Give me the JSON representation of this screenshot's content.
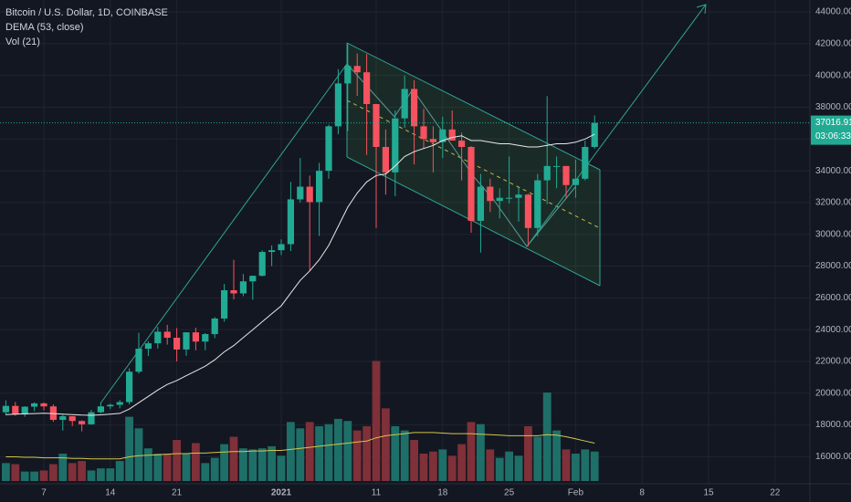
{
  "chart_data": {
    "type": "candlestick",
    "title": "Bitcoin / U.S. Dollar, 1D, COINBASE",
    "indicators": [
      "DEMA (53, close)",
      "Vol (21)"
    ],
    "categories": [
      null,
      null,
      null,
      null,
      "7",
      null,
      null,
      null,
      null,
      null,
      null,
      "14",
      null,
      null,
      null,
      null,
      null,
      null,
      "21",
      null,
      null,
      null,
      null,
      null,
      null,
      null,
      null,
      null,
      null,
      "2021",
      null,
      null,
      null,
      null,
      null,
      null,
      null,
      null,
      null,
      "11",
      null,
      null,
      null,
      null,
      null,
      null,
      "18",
      null,
      null,
      null,
      null,
      null,
      null,
      "25",
      null,
      null,
      null,
      null,
      null,
      null,
      "Feb",
      null,
      null,
      null,
      null,
      null,
      null,
      "8",
      null,
      null,
      null,
      null,
      null,
      null,
      "15",
      null,
      null,
      null,
      null,
      null,
      null,
      "22",
      null,
      null,
      null
    ],
    "open": [
      18800,
      19200,
      18660,
      19150,
      19360,
      19170,
      18320,
      18550,
      18250,
      18040,
      18800,
      19170,
      19270,
      19440,
      21350,
      22800,
      23140,
      23870,
      23490,
      22750,
      23830,
      23250,
      23720,
      24700,
      26480,
      26280,
      27040,
      27390,
      28890,
      29000,
      29380,
      32200,
      33000,
      32030,
      34000,
      36800,
      39500,
      40600,
      40200,
      38200,
      35500,
      33900,
      37300,
      39150,
      36800,
      36000,
      35800,
      36600,
      35900,
      35500,
      30850,
      33000,
      32100,
      32300,
      32300,
      32500,
      30400,
      33400,
      34300,
      34300,
      33100,
      33500,
      35500,
      null,
      null,
      null,
      null,
      null,
      null,
      null,
      null,
      null,
      null,
      null,
      null,
      null,
      null,
      null,
      null,
      null,
      null,
      null,
      null,
      null,
      null
    ],
    "high": [
      19550,
      19450,
      19180,
      19420,
      19420,
      19300,
      18640,
      18560,
      18290,
      18950,
      19400,
      19340,
      19570,
      21560,
      23800,
      23280,
      24170,
      24300,
      24100,
      23840,
      24120,
      23780,
      24790,
      26870,
      28400,
      27500,
      27400,
      28990,
      29300,
      29680,
      33300,
      34800,
      33700,
      34500,
      36900,
      40400,
      41950,
      41380,
      41350,
      38200,
      36600,
      37800,
      40000,
      39700,
      37900,
      36800,
      37400,
      37800,
      36400,
      35550,
      33800,
      33500,
      32900,
      34900,
      32950,
      32550,
      33800,
      38700,
      34900,
      34300,
      34700,
      35900,
      37480,
      null,
      null,
      null,
      null,
      null,
      null,
      null,
      null,
      null,
      null,
      null,
      null,
      null,
      null,
      null,
      null,
      null,
      null,
      null,
      null,
      null,
      null
    ],
    "low": [
      18600,
      18580,
      18520,
      18870,
      18920,
      18200,
      17650,
      17930,
      17600,
      18020,
      18730,
      19000,
      19050,
      19300,
      21230,
      22350,
      22800,
      23060,
      22000,
      22360,
      22700,
      22700,
      23470,
      24500,
      25900,
      26100,
      25880,
      27350,
      28000,
      28700,
      28950,
      32000,
      27700,
      29900,
      33500,
      36300,
      36500,
      38720,
      35000,
      30400,
      32500,
      32400,
      36700,
      34400,
      35400,
      33900,
      34800,
      35900,
      33400,
      30100,
      28850,
      31400,
      31000,
      31950,
      30800,
      29250,
      29880,
      31900,
      32900,
      32300,
      32300,
      33400,
      35400,
      null,
      null,
      null,
      null,
      null,
      null,
      null,
      null,
      null,
      null,
      null,
      null,
      null,
      null,
      null,
      null,
      null,
      null,
      null,
      null,
      null,
      null
    ],
    "close": [
      19200,
      18660,
      19150,
      19360,
      19170,
      18320,
      18550,
      18250,
      18040,
      18800,
      19170,
      19270,
      19440,
      21350,
      22800,
      23140,
      23870,
      23490,
      22750,
      23830,
      23250,
      23720,
      24700,
      26480,
      26280,
      27040,
      27390,
      28890,
      29000,
      29380,
      32200,
      33000,
      32030,
      34000,
      36800,
      39500,
      40600,
      40200,
      38200,
      35500,
      33900,
      37300,
      39150,
      36800,
      36000,
      35800,
      36600,
      35900,
      35500,
      30850,
      33000,
      32100,
      32300,
      32300,
      32500,
      30400,
      33400,
      34300,
      34300,
      33100,
      33500,
      35500,
      37016.91,
      null,
      null,
      null,
      null,
      null,
      null,
      null,
      null,
      null,
      null,
      null,
      null,
      null,
      null,
      null,
      null,
      null,
      null,
      null,
      null,
      null,
      null
    ],
    "up_color": "#22ab94",
    "down_color": "#f7525f",
    "volume": [
      17000,
      16000,
      9000,
      9000,
      10000,
      16000,
      26000,
      17000,
      19000,
      10000,
      12000,
      12000,
      19000,
      61000,
      50000,
      31000,
      26000,
      26000,
      39000,
      26000,
      36000,
      17000,
      22000,
      35000,
      42000,
      31000,
      30000,
      31000,
      33000,
      24000,
      56000,
      50000,
      56000,
      52000,
      54000,
      59000,
      57000,
      48000,
      52000,
      114000,
      69000,
      52000,
      48000,
      39000,
      26000,
      28000,
      30000,
      24000,
      35000,
      56000,
      54000,
      30000,
      22000,
      28000,
      24000,
      52000,
      42000,
      84000,
      48000,
      30000,
      26000,
      30000,
      28000,
      null,
      null,
      null,
      null,
      null,
      null,
      null,
      null,
      null,
      null,
      null,
      null,
      null,
      null,
      null,
      null,
      null,
      null,
      null,
      null,
      null,
      null
    ],
    "volume_up_color": "#1e6f68",
    "volume_down_color": "#7f3038",
    "vlim": [
      0,
      130000
    ],
    "series": [
      {
        "name": "DEMA",
        "color": "#e8e8e8",
        "axis": "y",
        "values": [
          18650,
          18680,
          18700,
          18720,
          18740,
          18720,
          18680,
          18650,
          18620,
          18610,
          18640,
          18680,
          18730,
          19000,
          19400,
          19800,
          20200,
          20550,
          20800,
          21100,
          21400,
          21700,
          22100,
          22600,
          23000,
          23500,
          24000,
          24500,
          25000,
          25500,
          26300,
          27100,
          27700,
          28400,
          29300,
          30500,
          31700,
          32600,
          33300,
          33700,
          33800,
          34300,
          34900,
          35200,
          35400,
          35600,
          35900,
          36100,
          36200,
          35900,
          35900,
          35800,
          35700,
          35700,
          35600,
          35500,
          35500,
          35600,
          35700,
          35700,
          35800,
          36000,
          36300,
          null,
          null,
          null,
          null,
          null,
          null,
          null,
          null,
          null,
          null,
          null,
          null,
          null,
          null,
          null,
          null,
          null,
          null,
          null,
          null,
          null,
          null
        ]
      },
      {
        "name": "Vol MA",
        "color": "#d4c64a",
        "axis": "volume",
        "values": [
          23000,
          23000,
          22500,
          22500,
          22000,
          22000,
          22000,
          21500,
          21500,
          21000,
          21000,
          21000,
          21000,
          23000,
          24000,
          24500,
          25000,
          25500,
          26000,
          26000,
          26500,
          26500,
          27000,
          27500,
          28000,
          28000,
          28500,
          28500,
          29000,
          29000,
          30000,
          31000,
          32000,
          33000,
          34000,
          35000,
          36000,
          37000,
          38000,
          41000,
          43000,
          44000,
          45000,
          46000,
          46000,
          46000,
          45500,
          45000,
          45000,
          45000,
          44500,
          44000,
          43500,
          43000,
          43000,
          43000,
          43000,
          44000,
          43500,
          42000,
          40000,
          38000,
          36000,
          null,
          null,
          null,
          null,
          null,
          null,
          null,
          null,
          null,
          null,
          null,
          null,
          null,
          null,
          null,
          null,
          null,
          null,
          null,
          null,
          null,
          null
        ]
      }
    ],
    "ylim": [
      14300,
      44750
    ],
    "yticks": [
      {
        "value": 16000,
        "label": "16000.00"
      },
      {
        "value": 18000,
        "label": "18000.00"
      },
      {
        "value": 20000,
        "label": "20000.00"
      },
      {
        "value": 22000,
        "label": "22000.00"
      },
      {
        "value": 24000,
        "label": "24000.00"
      },
      {
        "value": 26000,
        "label": "26000.00"
      },
      {
        "value": 28000,
        "label": "28000.00"
      },
      {
        "value": 30000,
        "label": "30000.00"
      },
      {
        "value": 32000,
        "label": "32000.00"
      },
      {
        "value": 34000,
        "label": "34000.00"
      },
      {
        "value": 36000,
        "label": "36000.00"
      },
      {
        "value": 38000,
        "label": "38000.00"
      },
      {
        "value": 40000,
        "label": "40000.00"
      },
      {
        "value": 42000,
        "label": "42000.00"
      },
      {
        "value": 44000,
        "label": "44000.00"
      }
    ],
    "last_price": 37016.91,
    "countdown": "03:06:33",
    "grid": true
  }
}
